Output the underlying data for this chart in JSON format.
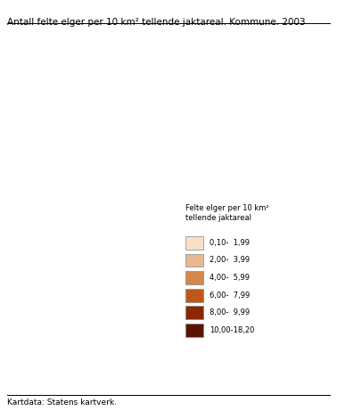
{
  "title": "Antall felte elger per 10 km² tellende jaktareal. Kommune. 2003",
  "source": "Kartdata: Statens kartverk.",
  "legend_title": "Felte elger per 10 km²\ntellende jaktareal",
  "legend_labels": [
    "0,10-  1,99",
    "2,00-  3,99",
    "4,00-  5,99",
    "6,00-  7,99",
    "8,00-  9,99",
    "10,00-18,20"
  ],
  "legend_colors": [
    "#f7dfc8",
    "#e8b990",
    "#d4874a",
    "#c0571a",
    "#8b2800",
    "#5a1500"
  ],
  "background_color": "#ffffff",
  "border_color": "#aaaaaa",
  "figsize": [
    3.78,
    4.7
  ],
  "dpi": 100,
  "title_fontsize": 7.5,
  "source_fontsize": 6.5,
  "legend_fontsize": 6.0
}
